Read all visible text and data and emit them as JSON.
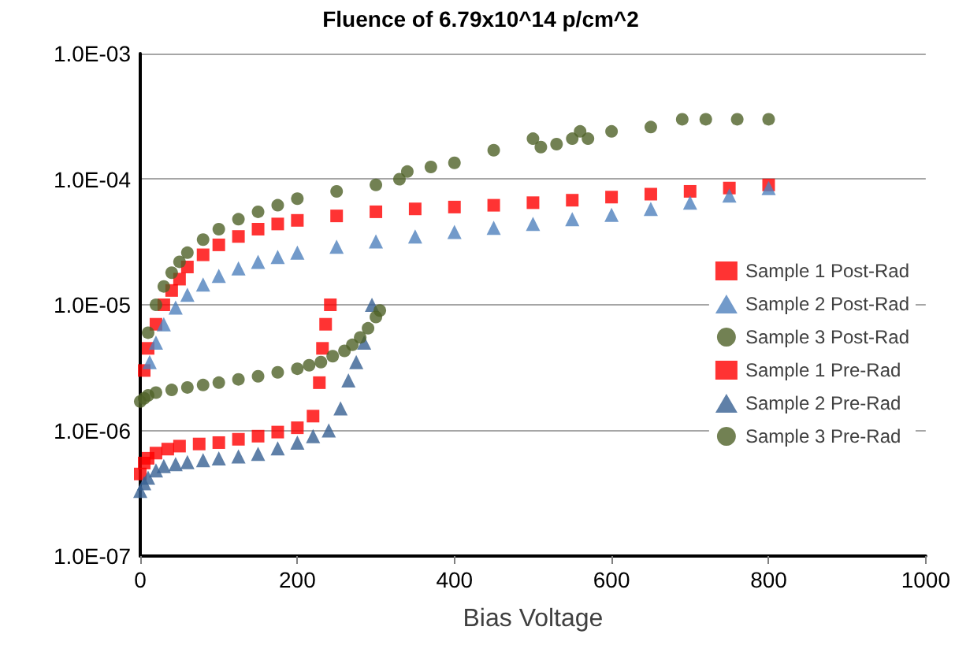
{
  "chart_data": {
    "type": "scatter",
    "title": "Fluence of 6.79x10^14 p/cm^2",
    "xlabel": "Bias Voltage",
    "xlim": [
      0,
      1000
    ],
    "xticks": [
      0,
      200,
      400,
      600,
      800,
      1000
    ],
    "ylim": [
      1e-07,
      0.001
    ],
    "yticks": [
      {
        "value": 1e-07,
        "label": "1.0E-07"
      },
      {
        "value": 1e-06,
        "label": "1.0E-06"
      },
      {
        "value": 1e-05,
        "label": "1.0E-05"
      },
      {
        "value": 0.0001,
        "label": "1.0E-04"
      },
      {
        "value": 0.001,
        "label": "1.0E-03"
      }
    ],
    "log": "y",
    "grid": "y",
    "legend": "right",
    "series": [
      {
        "name": "Sample 1 Post-Rad",
        "color": "#ff0000",
        "marker": "square",
        "x": [
          5,
          10,
          20,
          30,
          40,
          50,
          60,
          80,
          100,
          125,
          150,
          175,
          200,
          250,
          300,
          350,
          400,
          450,
          500,
          550,
          600,
          650,
          700,
          750,
          800
        ],
        "values": [
          3e-06,
          4.5e-06,
          7e-06,
          1e-05,
          1.3e-05,
          1.6e-05,
          2e-05,
          2.5e-05,
          3e-05,
          3.5e-05,
          4e-05,
          4.4e-05,
          4.7e-05,
          5.1e-05,
          5.5e-05,
          5.8e-05,
          6e-05,
          6.2e-05,
          6.5e-05,
          6.8e-05,
          7.2e-05,
          7.6e-05,
          8e-05,
          8.5e-05,
          9e-05
        ]
      },
      {
        "name": "Sample 2 Post-Rad",
        "color": "#4f81bd",
        "marker": "triangle",
        "x": [
          12,
          20,
          30,
          45,
          60,
          80,
          100,
          125,
          150,
          175,
          200,
          250,
          300,
          350,
          400,
          450,
          500,
          550,
          600,
          650,
          700,
          750,
          800
        ],
        "values": [
          3.5e-06,
          5e-06,
          7e-06,
          9.5e-06,
          1.2e-05,
          1.45e-05,
          1.7e-05,
          1.95e-05,
          2.2e-05,
          2.4e-05,
          2.6e-05,
          2.9e-05,
          3.2e-05,
          3.5e-05,
          3.8e-05,
          4.1e-05,
          4.4e-05,
          4.8e-05,
          5.2e-05,
          5.8e-05,
          6.5e-05,
          7.4e-05,
          8.5e-05
        ]
      },
      {
        "name": "Sample 3 Post-Rad",
        "color": "#4f6228",
        "marker": "circle",
        "x": [
          10,
          20,
          30,
          40,
          50,
          60,
          80,
          100,
          125,
          150,
          175,
          200,
          250,
          300,
          330,
          340,
          370,
          400,
          450,
          500,
          510,
          530,
          550,
          560,
          570,
          600,
          650,
          690,
          720,
          760,
          800
        ],
        "values": [
          6e-06,
          1e-05,
          1.4e-05,
          1.8e-05,
          2.2e-05,
          2.6e-05,
          3.3e-05,
          4e-05,
          4.8e-05,
          5.5e-05,
          6.2e-05,
          7e-05,
          8e-05,
          9e-05,
          0.0001,
          0.000115,
          0.000125,
          0.000135,
          0.00017,
          0.00021,
          0.00018,
          0.00019,
          0.00021,
          0.00024,
          0.00021,
          0.00024,
          0.00026,
          0.0003,
          0.0003,
          0.0003,
          0.0003
        ]
      },
      {
        "name": "Sample 1 Pre-Rad",
        "color": "#ff0000",
        "marker": "square",
        "x": [
          0,
          5,
          10,
          20,
          35,
          50,
          75,
          100,
          125,
          150,
          175,
          200,
          220,
          228,
          232,
          236,
          242
        ],
        "values": [
          4.5e-07,
          5.5e-07,
          6e-07,
          6.6e-07,
          7.1e-07,
          7.5e-07,
          7.8e-07,
          8e-07,
          8.5e-07,
          9e-07,
          9.7e-07,
          1.05e-06,
          1.3e-06,
          2.4e-06,
          4.5e-06,
          7e-06,
          1e-05
        ]
      },
      {
        "name": "Sample 2 Pre-Rad",
        "color": "#376092",
        "marker": "triangle",
        "x": [
          0,
          5,
          10,
          20,
          30,
          45,
          60,
          80,
          100,
          125,
          150,
          175,
          200,
          220,
          240,
          255,
          265,
          275,
          285,
          295
        ],
        "values": [
          3.3e-07,
          3.8e-07,
          4.2e-07,
          4.8e-07,
          5.2e-07,
          5.4e-07,
          5.6e-07,
          5.8e-07,
          6e-07,
          6.2e-07,
          6.5e-07,
          7.2e-07,
          8e-07,
          9e-07,
          1e-06,
          1.5e-06,
          2.5e-06,
          3.5e-06,
          5e-06,
          1e-05
        ]
      },
      {
        "name": "Sample 3 Pre-Rad",
        "color": "#4f6228",
        "marker": "circle",
        "x": [
          0,
          5,
          10,
          20,
          40,
          60,
          80,
          100,
          125,
          150,
          175,
          200,
          215,
          230,
          245,
          260,
          270,
          280,
          290,
          300,
          305
        ],
        "values": [
          1.7e-06,
          1.8e-06,
          1.9e-06,
          2e-06,
          2.1e-06,
          2.2e-06,
          2.3e-06,
          2.4e-06,
          2.55e-06,
          2.7e-06,
          2.9e-06,
          3.1e-06,
          3.3e-06,
          3.5e-06,
          3.9e-06,
          4.3e-06,
          4.8e-06,
          5.5e-06,
          6.5e-06,
          8e-06,
          9e-06
        ]
      }
    ]
  }
}
